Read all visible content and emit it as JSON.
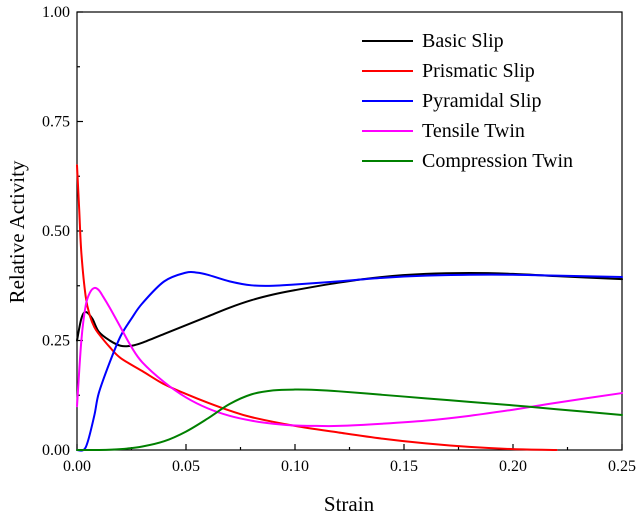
{
  "chart_data": {
    "type": "line",
    "title": "",
    "xlabel": "Strain",
    "ylabel": "Relative Activity",
    "xlim": [
      0,
      0.25
    ],
    "ylim": [
      0,
      1.0
    ],
    "xticks": [
      0,
      0.05,
      0.1,
      0.15,
      0.2,
      0.25
    ],
    "xtick_labels": [
      "0.00",
      "0.05",
      "0.10",
      "0.15",
      "0.20",
      "0.25"
    ],
    "yticks": [
      0,
      0.25,
      0.5,
      0.75,
      1.0
    ],
    "ytick_labels": [
      "0.00",
      "0.25",
      "0.50",
      "0.75",
      "1.00"
    ],
    "grid": false,
    "legend_position": "top-right",
    "series": [
      {
        "name": "Basic Slip",
        "color": "#000000",
        "x": [
          0,
          0.002,
          0.004,
          0.007,
          0.01,
          0.015,
          0.02,
          0.025,
          0.03,
          0.04,
          0.05,
          0.06,
          0.07,
          0.08,
          0.09,
          0.1,
          0.12,
          0.14,
          0.16,
          0.18,
          0.2,
          0.22,
          0.25
        ],
        "y": [
          0.25,
          0.3,
          0.315,
          0.3,
          0.27,
          0.25,
          0.238,
          0.238,
          0.245,
          0.265,
          0.285,
          0.305,
          0.325,
          0.342,
          0.355,
          0.365,
          0.382,
          0.395,
          0.402,
          0.404,
          0.402,
          0.397,
          0.39
        ]
      },
      {
        "name": "Prismatic Slip",
        "color": "#ff0000",
        "x": [
          0,
          0.001,
          0.002,
          0.004,
          0.006,
          0.008,
          0.01,
          0.015,
          0.02,
          0.03,
          0.04,
          0.05,
          0.06,
          0.07,
          0.08,
          0.1,
          0.12,
          0.14,
          0.16,
          0.18,
          0.2,
          0.22
        ],
        "y": [
          0.65,
          0.55,
          0.45,
          0.35,
          0.305,
          0.28,
          0.265,
          0.235,
          0.21,
          0.18,
          0.15,
          0.128,
          0.108,
          0.09,
          0.075,
          0.055,
          0.04,
          0.026,
          0.015,
          0.007,
          0.002,
          0.0
        ]
      },
      {
        "name": "Pyramidal Slip",
        "color": "#0000ff",
        "x": [
          0,
          0.003,
          0.005,
          0.008,
          0.01,
          0.015,
          0.02,
          0.025,
          0.03,
          0.04,
          0.05,
          0.055,
          0.06,
          0.07,
          0.08,
          0.09,
          0.1,
          0.12,
          0.14,
          0.16,
          0.18,
          0.2,
          0.22,
          0.25
        ],
        "y": [
          0.0,
          0.0,
          0.02,
          0.08,
          0.13,
          0.2,
          0.26,
          0.3,
          0.335,
          0.385,
          0.405,
          0.405,
          0.4,
          0.385,
          0.376,
          0.375,
          0.378,
          0.385,
          0.393,
          0.398,
          0.4,
          0.4,
          0.398,
          0.395
        ]
      },
      {
        "name": "Tensile Twin",
        "color": "#ff00ff",
        "x": [
          0,
          0.002,
          0.004,
          0.006,
          0.008,
          0.01,
          0.012,
          0.015,
          0.02,
          0.025,
          0.03,
          0.04,
          0.05,
          0.06,
          0.07,
          0.08,
          0.09,
          0.1,
          0.11,
          0.12,
          0.14,
          0.16,
          0.18,
          0.2,
          0.22,
          0.25
        ],
        "y": [
          0.1,
          0.25,
          0.33,
          0.36,
          0.37,
          0.365,
          0.35,
          0.325,
          0.28,
          0.235,
          0.2,
          0.155,
          0.12,
          0.095,
          0.078,
          0.067,
          0.06,
          0.056,
          0.055,
          0.055,
          0.06,
          0.067,
          0.078,
          0.092,
          0.108,
          0.13
        ]
      },
      {
        "name": "Compression Twin",
        "color": "#008000",
        "x": [
          0,
          0.01,
          0.02,
          0.03,
          0.04,
          0.05,
          0.06,
          0.07,
          0.08,
          0.09,
          0.1,
          0.11,
          0.12,
          0.14,
          0.16,
          0.18,
          0.2,
          0.22,
          0.25
        ],
        "y": [
          0.0,
          0.0,
          0.002,
          0.008,
          0.02,
          0.042,
          0.072,
          0.105,
          0.127,
          0.136,
          0.138,
          0.137,
          0.134,
          0.126,
          0.118,
          0.11,
          0.102,
          0.093,
          0.08
        ]
      }
    ]
  }
}
